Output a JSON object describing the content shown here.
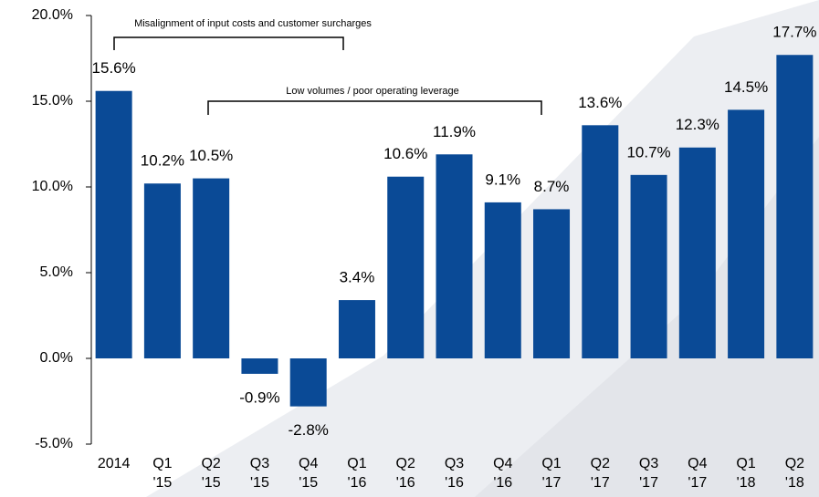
{
  "chart_data": {
    "type": "bar",
    "categories": [
      "2014",
      "Q1 '15",
      "Q2 '15",
      "Q3 '15",
      "Q4 '15",
      "Q1 '16",
      "Q2 '16",
      "Q3 '16",
      "Q4 '16",
      "Q1 '17",
      "Q2 '17",
      "Q3 '17",
      "Q4 '17",
      "Q1 '18",
      "Q2 '18"
    ],
    "values": [
      15.6,
      10.2,
      10.5,
      -0.9,
      -2.8,
      3.4,
      10.6,
      11.9,
      9.1,
      8.7,
      13.6,
      10.7,
      12.3,
      14.5,
      17.7
    ],
    "value_labels": [
      "15.6%",
      "10.2%",
      "10.5%",
      "-0.9%",
      "-2.8%",
      "3.4%",
      "10.6%",
      "11.9%",
      "9.1%",
      "8.7%",
      "13.6%",
      "10.7%",
      "12.3%",
      "14.5%",
      "17.7%"
    ],
    "color": "#0a4a96",
    "ylim": [
      -5,
      20
    ],
    "yticks": [
      {
        "value": -5,
        "label": "-5.0%"
      },
      {
        "value": 0,
        "label": "0.0%"
      },
      {
        "value": 5,
        "label": "5.0%"
      },
      {
        "value": 10,
        "label": "10.0%"
      },
      {
        "value": 15,
        "label": "15.0%"
      },
      {
        "value": 20,
        "label": "20.0%"
      }
    ],
    "annotations": [
      "Misalignment of input costs and customer surcharges",
      "Low volumes / poor operating leverage"
    ]
  }
}
